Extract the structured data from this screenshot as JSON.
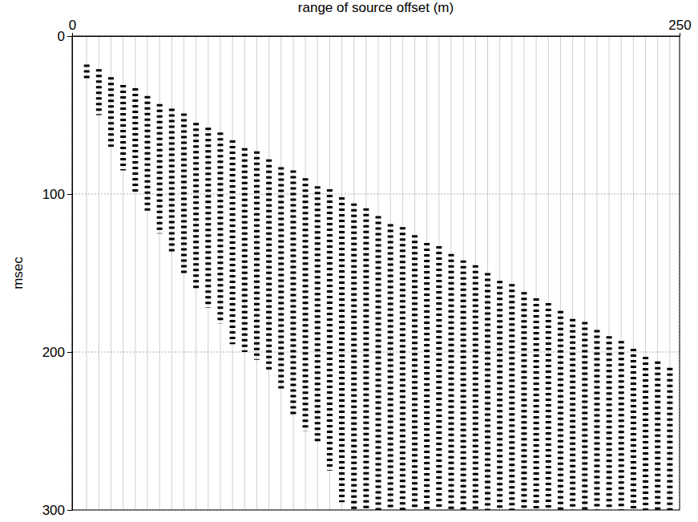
{
  "chart_data": {
    "type": "wiggle",
    "x_label": "range of source offset (m)",
    "y_label": "msec",
    "xlim": [
      0,
      250
    ],
    "ylim": [
      0,
      300
    ],
    "xticks": [
      0,
      250
    ],
    "yticks": [
      0,
      100,
      200,
      300
    ],
    "grid": true,
    "color": "#000000",
    "x": [
      6,
      11,
      16,
      21,
      26,
      31,
      36,
      41,
      46,
      51,
      56,
      61,
      66,
      71,
      76,
      81,
      86,
      91,
      96,
      101,
      106,
      111,
      116,
      121,
      126,
      131,
      136,
      141,
      146,
      151,
      156,
      161,
      166,
      171,
      176,
      181,
      186,
      191,
      196,
      201,
      206,
      211,
      216,
      221,
      226,
      231,
      236,
      241,
      246
    ],
    "first_arrival": [
      18,
      21,
      26,
      31,
      33,
      38,
      43,
      46,
      49,
      55,
      58,
      61,
      66,
      71,
      73,
      78,
      83,
      85,
      90,
      95,
      97,
      102,
      106,
      109,
      114,
      119,
      121,
      126,
      131,
      133,
      138,
      142,
      145,
      150,
      155,
      157,
      162,
      166,
      169,
      174,
      179,
      181,
      186,
      190,
      193,
      198,
      203,
      206,
      210
    ],
    "last_sample": [
      28,
      50,
      70,
      85,
      100,
      112,
      125,
      138,
      150,
      160,
      172,
      182,
      195,
      200,
      205,
      212,
      225,
      240,
      250,
      257,
      275,
      295,
      300,
      300,
      300,
      300,
      300,
      300,
      300,
      300,
      300,
      300,
      300,
      300,
      300,
      300,
      300,
      300,
      300,
      300,
      300,
      300,
      300,
      300,
      300,
      300,
      300,
      300,
      300
    ]
  }
}
